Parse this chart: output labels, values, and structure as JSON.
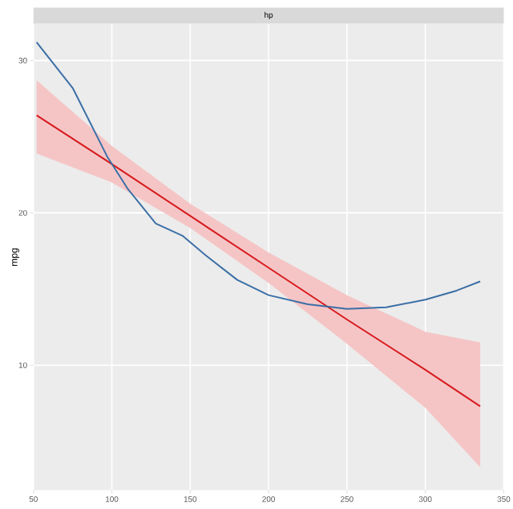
{
  "chart_data": {
    "type": "line",
    "title": "hp",
    "ylabel": "mpg",
    "xlim": [
      50,
      350
    ],
    "ylim": [
      1.8,
      32.4
    ],
    "xticks": [
      50,
      100,
      150,
      200,
      250,
      300,
      350
    ],
    "yticks": [
      10,
      20,
      30
    ],
    "grid": true,
    "series": [
      {
        "color": "#3b6fa6",
        "x": [
          52,
          75,
          97,
          110,
          128,
          145,
          160,
          180,
          200,
          225,
          250,
          275,
          300,
          320,
          335
        ],
        "values": [
          31.2,
          28.2,
          23.7,
          21.6,
          19.3,
          18.5,
          17.2,
          15.6,
          14.6,
          14.0,
          13.7,
          13.8,
          14.3,
          14.9,
          15.5
        ]
      },
      {
        "color": "#d7191c",
        "x": [
          52,
          100,
          150,
          200,
          250,
          300,
          335
        ],
        "values": [
          26.4,
          23.2,
          19.8,
          16.4,
          13.0,
          9.7,
          7.3
        ],
        "lower": [
          23.9,
          22.0,
          19.0,
          15.4,
          11.4,
          7.2,
          3.3
        ],
        "upper": [
          28.7,
          24.4,
          20.6,
          17.4,
          14.6,
          12.2,
          11.5
        ]
      }
    ]
  }
}
